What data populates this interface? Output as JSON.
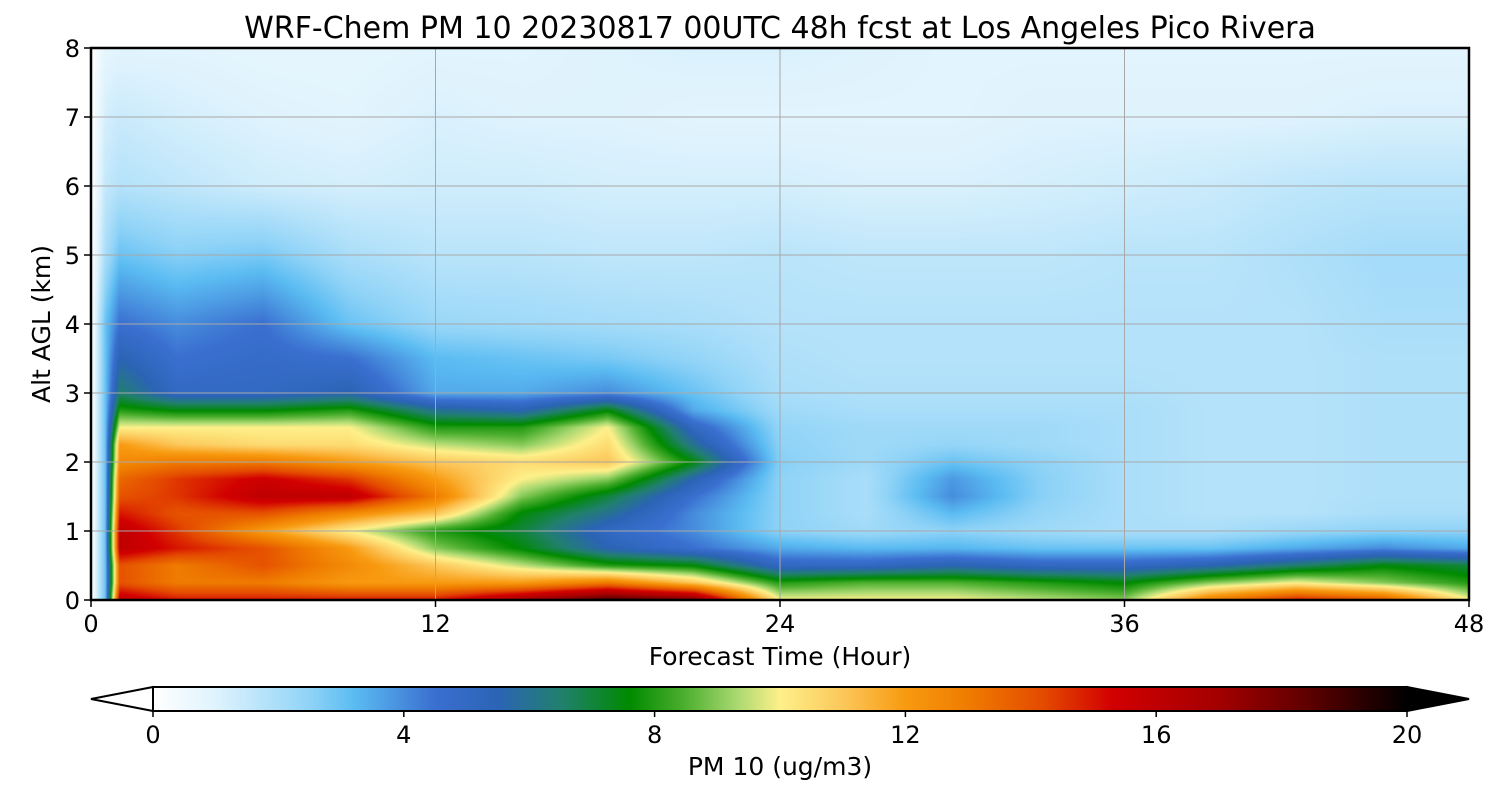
{
  "chart_data": {
    "type": "heatmap",
    "title": "WRF-Chem PM 10  20230817 00UTC 48h fcst at Los Angeles Pico Rivera",
    "xlabel": "Forecast Time (Hour)",
    "ylabel": "Alt AGL (km)",
    "xlim": [
      0,
      48
    ],
    "ylim": [
      0,
      8
    ],
    "xticks": [
      "0",
      "12",
      "24",
      "36",
      "48"
    ],
    "yticks": [
      "0",
      "1",
      "2",
      "3",
      "4",
      "5",
      "6",
      "7",
      "8"
    ],
    "grid": true,
    "colorbar": {
      "label": "PM 10  (ug/m3)",
      "ticks": [
        "0",
        "4",
        "8",
        "12",
        "16",
        "20"
      ],
      "range": [
        0,
        20
      ],
      "extend": "both",
      "colormap": [
        {
          "v": 0,
          "c": "#ffffff"
        },
        {
          "v": 1,
          "c": "#dff3fd"
        },
        {
          "v": 2.5,
          "c": "#8fd3f7"
        },
        {
          "v": 3.2,
          "c": "#5bbcf2"
        },
        {
          "v": 4.5,
          "c": "#3a6fd0"
        },
        {
          "v": 5.5,
          "c": "#2b64b5"
        },
        {
          "v": 6.5,
          "c": "#21806e"
        },
        {
          "v": 7.6,
          "c": "#008a00"
        },
        {
          "v": 8.5,
          "c": "#4fb030"
        },
        {
          "v": 9.3,
          "c": "#a8d870"
        },
        {
          "v": 10,
          "c": "#fef08a"
        },
        {
          "v": 11,
          "c": "#fcc75a"
        },
        {
          "v": 12,
          "c": "#f89a10"
        },
        {
          "v": 13,
          "c": "#ef7c00"
        },
        {
          "v": 14.2,
          "c": "#e44a00"
        },
        {
          "v": 15.3,
          "c": "#d20000"
        },
        {
          "v": 17,
          "c": "#a30000"
        },
        {
          "v": 18.5,
          "c": "#5a0000"
        },
        {
          "v": 20,
          "c": "#000000"
        }
      ]
    },
    "x": [
      0,
      0.5,
      1,
      3,
      6,
      9,
      12,
      15,
      18,
      21,
      24,
      27,
      30,
      33,
      36,
      39,
      42,
      45,
      48
    ],
    "y": [
      0,
      0.25,
      0.5,
      0.75,
      1,
      1.25,
      1.5,
      1.75,
      2,
      2.25,
      2.5,
      2.75,
      3,
      3.5,
      4,
      5,
      6,
      7,
      8
    ],
    "z": [
      [
        0,
        3,
        16,
        15,
        15,
        15,
        15,
        17,
        19,
        18,
        10,
        10,
        10,
        9.5,
        9,
        13,
        15,
        14,
        10
      ],
      [
        0,
        3,
        14,
        13,
        13,
        12,
        12,
        12,
        13,
        11,
        8,
        8.5,
        8.5,
        8,
        7.5,
        9,
        10,
        9,
        8
      ],
      [
        0,
        3,
        14,
        13,
        14,
        12.5,
        11,
        9.5,
        8,
        7.5,
        5,
        5,
        5.5,
        5,
        5,
        5.5,
        6.5,
        7.5,
        7
      ],
      [
        0,
        3,
        16,
        15,
        14,
        12,
        9,
        7.5,
        5.5,
        4.5,
        3.5,
        3.2,
        3.3,
        3,
        3,
        3,
        3.5,
        4,
        3.5
      ],
      [
        0,
        3,
        16,
        14.5,
        12,
        10,
        8,
        7,
        5,
        4,
        2.5,
        2.2,
        2.5,
        2.2,
        2,
        2,
        2.3,
        2.5,
        2.5
      ],
      [
        0,
        3,
        15,
        14,
        14,
        12.5,
        11,
        7.5,
        6,
        4,
        2.5,
        2,
        3.2,
        2.4,
        2,
        1.8,
        1.8,
        2,
        2
      ],
      [
        0,
        3,
        14,
        14.5,
        16,
        16,
        13,
        9,
        7,
        4.5,
        2.5,
        2,
        4,
        2.6,
        2,
        1.8,
        1.8,
        1.9,
        1.9
      ],
      [
        0,
        3,
        13.5,
        14.5,
        15.5,
        14.5,
        12,
        10,
        9,
        5.5,
        2.5,
        2,
        3.8,
        2.6,
        2,
        1.8,
        1.8,
        1.9,
        1.9
      ],
      [
        0,
        3,
        12.5,
        13,
        13,
        12,
        11,
        10.5,
        11,
        7.5,
        2.6,
        2.2,
        3,
        2.5,
        2,
        1.8,
        1.8,
        1.9,
        1.9
      ],
      [
        0,
        3,
        12,
        11,
        10.5,
        10.5,
        9.5,
        9,
        10.5,
        6,
        2.5,
        2.2,
        2.4,
        2.2,
        2,
        1.8,
        1.8,
        1.9,
        1.9
      ],
      [
        0,
        3,
        10,
        10,
        10,
        10,
        8,
        8,
        10,
        5,
        2.4,
        2.2,
        2.2,
        2.2,
        2,
        1.8,
        1.8,
        1.9,
        1.9
      ],
      [
        0,
        3,
        8,
        7.5,
        7.5,
        8,
        6,
        5.5,
        7.5,
        3.5,
        2.2,
        2,
        2,
        2,
        2,
        1.8,
        1.8,
        1.9,
        1.9
      ],
      [
        0,
        3,
        6.5,
        5,
        5,
        5.5,
        3.5,
        3.5,
        4,
        3,
        2,
        1.9,
        1.9,
        1.9,
        1.9,
        1.8,
        1.8,
        1.9,
        1.9
      ],
      [
        0,
        3,
        5.5,
        4.5,
        4.8,
        4.5,
        3.2,
        3,
        2.8,
        2.4,
        1.9,
        1.8,
        1.8,
        1.8,
        1.8,
        1.8,
        1.8,
        1.9,
        1.9
      ],
      [
        0,
        3,
        4.5,
        4,
        4.5,
        3,
        2.3,
        2.2,
        2.1,
        2,
        1.8,
        1.8,
        1.8,
        1.8,
        1.8,
        1.8,
        1.8,
        2,
        2
      ],
      [
        0,
        2,
        3,
        2.6,
        2.8,
        2,
        1.7,
        1.7,
        1.6,
        1.6,
        1.7,
        1.6,
        1.6,
        1.6,
        1.7,
        1.7,
        1.9,
        2.1,
        2.1
      ],
      [
        0,
        1.5,
        1.8,
        1.6,
        1.3,
        1.2,
        1.3,
        1.3,
        1.2,
        1.2,
        1.2,
        1.1,
        1.1,
        1.2,
        1.3,
        1.4,
        1.6,
        1.7,
        1.7
      ],
      [
        0,
        1.2,
        1.4,
        1.2,
        1,
        0.9,
        1.1,
        1,
        1,
        0.9,
        0.9,
        0.9,
        0.9,
        1,
        1,
        1,
        1,
        1.1,
        1.1
      ],
      [
        0,
        0.8,
        0.9,
        0.9,
        0.8,
        0.8,
        0.9,
        0.9,
        1,
        1.1,
        1.1,
        1,
        0.9,
        0.9,
        0.9,
        0.9,
        0.9,
        0.9,
        0.9
      ]
    ]
  }
}
